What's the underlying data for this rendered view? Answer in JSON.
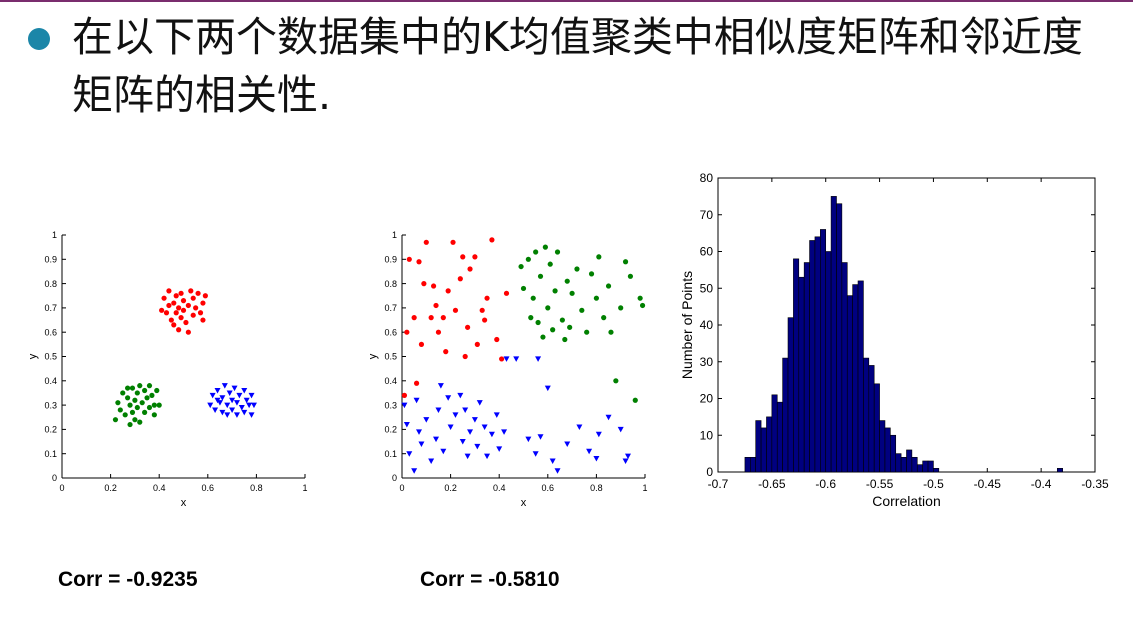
{
  "title": "在以下两个数据集中的K均值聚类中相似度矩阵和邻近度矩阵的相关性.",
  "colors": {
    "bullet": "#1b86a8",
    "red": "#ff0000",
    "green": "#008000",
    "blue": "#0000ff",
    "bar": "#000080"
  },
  "captions": {
    "left": "Corr = -0.9235",
    "middle": "Corr = -0.5810"
  },
  "chart_data": [
    {
      "type": "scatter",
      "xlabel": "x",
      "ylabel": "y",
      "xlim": [
        0,
        1
      ],
      "ylim": [
        0,
        1
      ],
      "xticks": [
        "0",
        "0.2",
        "0.4",
        "0.6",
        "0.8",
        "1"
      ],
      "yticks": [
        "0",
        "0.1",
        "0.2",
        "0.3",
        "0.4",
        "0.5",
        "0.6",
        "0.7",
        "0.8",
        "0.9",
        "1"
      ],
      "series": [
        {
          "color": "red",
          "marker": "dot",
          "points": [
            [
              0.41,
              0.69
            ],
            [
              0.42,
              0.74
            ],
            [
              0.43,
              0.68
            ],
            [
              0.44,
              0.71
            ],
            [
              0.44,
              0.77
            ],
            [
              0.45,
              0.65
            ],
            [
              0.46,
              0.72
            ],
            [
              0.46,
              0.63
            ],
            [
              0.47,
              0.75
            ],
            [
              0.47,
              0.68
            ],
            [
              0.48,
              0.7
            ],
            [
              0.48,
              0.61
            ],
            [
              0.49,
              0.76
            ],
            [
              0.49,
              0.66
            ],
            [
              0.5,
              0.73
            ],
            [
              0.5,
              0.69
            ],
            [
              0.51,
              0.64
            ],
            [
              0.52,
              0.6
            ],
            [
              0.52,
              0.71
            ],
            [
              0.53,
              0.77
            ],
            [
              0.54,
              0.67
            ],
            [
              0.54,
              0.74
            ],
            [
              0.55,
              0.7
            ],
            [
              0.56,
              0.76
            ],
            [
              0.57,
              0.68
            ],
            [
              0.58,
              0.72
            ],
            [
              0.58,
              0.65
            ],
            [
              0.59,
              0.75
            ]
          ]
        },
        {
          "color": "green",
          "marker": "dot",
          "points": [
            [
              0.22,
              0.24
            ],
            [
              0.23,
              0.31
            ],
            [
              0.24,
              0.28
            ],
            [
              0.25,
              0.35
            ],
            [
              0.26,
              0.26
            ],
            [
              0.27,
              0.33
            ],
            [
              0.28,
              0.3
            ],
            [
              0.28,
              0.22
            ],
            [
              0.29,
              0.37
            ],
            [
              0.29,
              0.27
            ],
            [
              0.3,
              0.32
            ],
            [
              0.3,
              0.24
            ],
            [
              0.31,
              0.35
            ],
            [
              0.31,
              0.29
            ],
            [
              0.32,
              0.38
            ],
            [
              0.32,
              0.23
            ],
            [
              0.33,
              0.31
            ],
            [
              0.34,
              0.27
            ],
            [
              0.34,
              0.36
            ],
            [
              0.35,
              0.33
            ],
            [
              0.36,
              0.29
            ],
            [
              0.36,
              0.38
            ],
            [
              0.37,
              0.34
            ],
            [
              0.38,
              0.3
            ],
            [
              0.38,
              0.26
            ],
            [
              0.39,
              0.36
            ],
            [
              0.4,
              0.3
            ],
            [
              0.27,
              0.37
            ]
          ]
        },
        {
          "color": "blue",
          "marker": "triangle",
          "points": [
            [
              0.61,
              0.3
            ],
            [
              0.62,
              0.34
            ],
            [
              0.63,
              0.28
            ],
            [
              0.64,
              0.36
            ],
            [
              0.65,
              0.31
            ],
            [
              0.66,
              0.27
            ],
            [
              0.66,
              0.33
            ],
            [
              0.67,
              0.38
            ],
            [
              0.68,
              0.3
            ],
            [
              0.69,
              0.35
            ],
            [
              0.7,
              0.28
            ],
            [
              0.7,
              0.32
            ],
            [
              0.71,
              0.37
            ],
            [
              0.72,
              0.26
            ],
            [
              0.72,
              0.31
            ],
            [
              0.73,
              0.34
            ],
            [
              0.74,
              0.29
            ],
            [
              0.75,
              0.36
            ],
            [
              0.75,
              0.27
            ],
            [
              0.76,
              0.32
            ],
            [
              0.77,
              0.3
            ],
            [
              0.78,
              0.34
            ],
            [
              0.78,
              0.26
            ],
            [
              0.79,
              0.3
            ],
            [
              0.64,
              0.32
            ],
            [
              0.68,
              0.26
            ]
          ]
        }
      ]
    },
    {
      "type": "scatter",
      "xlabel": "x",
      "ylabel": "y",
      "xlim": [
        0,
        1
      ],
      "ylim": [
        0,
        1
      ],
      "xticks": [
        "0",
        "0.2",
        "0.4",
        "0.6",
        "0.8",
        "1"
      ],
      "yticks": [
        "0",
        "0.1",
        "0.2",
        "0.3",
        "0.4",
        "0.5",
        "0.6",
        "0.7",
        "0.8",
        "0.9",
        "1"
      ],
      "series": [
        {
          "color": "red",
          "marker": "dot",
          "points": [
            [
              0.01,
              0.34
            ],
            [
              0.02,
              0.6
            ],
            [
              0.03,
              0.9
            ],
            [
              0.05,
              0.66
            ],
            [
              0.06,
              0.39
            ],
            [
              0.07,
              0.89
            ],
            [
              0.08,
              0.55
            ],
            [
              0.1,
              0.97
            ],
            [
              0.12,
              0.66
            ],
            [
              0.13,
              0.79
            ],
            [
              0.15,
              0.6
            ],
            [
              0.17,
              0.66
            ],
            [
              0.18,
              0.52
            ],
            [
              0.19,
              0.77
            ],
            [
              0.21,
              0.97
            ],
            [
              0.22,
              0.69
            ],
            [
              0.24,
              0.82
            ],
            [
              0.26,
              0.5
            ],
            [
              0.27,
              0.62
            ],
            [
              0.28,
              0.86
            ],
            [
              0.3,
              0.91
            ],
            [
              0.31,
              0.55
            ],
            [
              0.33,
              0.69
            ],
            [
              0.34,
              0.65
            ],
            [
              0.35,
              0.74
            ],
            [
              0.37,
              0.98
            ],
            [
              0.39,
              0.57
            ],
            [
              0.41,
              0.49
            ],
            [
              0.43,
              0.76
            ],
            [
              0.14,
              0.71
            ],
            [
              0.25,
              0.91
            ],
            [
              0.09,
              0.8
            ]
          ]
        },
        {
          "color": "green",
          "marker": "dot",
          "points": [
            [
              0.49,
              0.87
            ],
            [
              0.5,
              0.78
            ],
            [
              0.52,
              0.9
            ],
            [
              0.53,
              0.66
            ],
            [
              0.54,
              0.74
            ],
            [
              0.55,
              0.93
            ],
            [
              0.56,
              0.64
            ],
            [
              0.57,
              0.83
            ],
            [
              0.58,
              0.58
            ],
            [
              0.59,
              0.95
            ],
            [
              0.6,
              0.7
            ],
            [
              0.61,
              0.88
            ],
            [
              0.62,
              0.61
            ],
            [
              0.63,
              0.77
            ],
            [
              0.64,
              0.93
            ],
            [
              0.66,
              0.65
            ],
            [
              0.67,
              0.57
            ],
            [
              0.68,
              0.81
            ],
            [
              0.69,
              0.62
            ],
            [
              0.7,
              0.76
            ],
            [
              0.72,
              0.86
            ],
            [
              0.74,
              0.69
            ],
            [
              0.76,
              0.6
            ],
            [
              0.78,
              0.84
            ],
            [
              0.8,
              0.74
            ],
            [
              0.81,
              0.91
            ],
            [
              0.83,
              0.66
            ],
            [
              0.85,
              0.79
            ],
            [
              0.88,
              0.4
            ],
            [
              0.9,
              0.7
            ],
            [
              0.92,
              0.89
            ],
            [
              0.94,
              0.83
            ],
            [
              0.96,
              0.32
            ],
            [
              0.98,
              0.74
            ],
            [
              0.99,
              0.71
            ],
            [
              0.86,
              0.6
            ]
          ]
        },
        {
          "color": "blue",
          "marker": "triangle",
          "points": [
            [
              0.01,
              0.3
            ],
            [
              0.02,
              0.22
            ],
            [
              0.03,
              0.1
            ],
            [
              0.05,
              0.03
            ],
            [
              0.06,
              0.32
            ],
            [
              0.07,
              0.19
            ],
            [
              0.08,
              0.14
            ],
            [
              0.1,
              0.24
            ],
            [
              0.12,
              0.07
            ],
            [
              0.14,
              0.16
            ],
            [
              0.15,
              0.28
            ],
            [
              0.17,
              0.11
            ],
            [
              0.19,
              0.33
            ],
            [
              0.2,
              0.21
            ],
            [
              0.22,
              0.26
            ],
            [
              0.24,
              0.34
            ],
            [
              0.25,
              0.15
            ],
            [
              0.26,
              0.28
            ],
            [
              0.27,
              0.09
            ],
            [
              0.28,
              0.19
            ],
            [
              0.3,
              0.24
            ],
            [
              0.31,
              0.13
            ],
            [
              0.32,
              0.31
            ],
            [
              0.34,
              0.21
            ],
            [
              0.35,
              0.09
            ],
            [
              0.37,
              0.18
            ],
            [
              0.39,
              0.26
            ],
            [
              0.4,
              0.12
            ],
            [
              0.42,
              0.19
            ],
            [
              0.43,
              0.49
            ],
            [
              0.47,
              0.49
            ],
            [
              0.52,
              0.16
            ],
            [
              0.55,
              0.1
            ],
            [
              0.57,
              0.17
            ],
            [
              0.6,
              0.37
            ],
            [
              0.62,
              0.07
            ],
            [
              0.64,
              0.03
            ],
            [
              0.68,
              0.14
            ],
            [
              0.73,
              0.21
            ],
            [
              0.77,
              0.11
            ],
            [
              0.8,
              0.08
            ],
            [
              0.81,
              0.18
            ],
            [
              0.85,
              0.25
            ],
            [
              0.9,
              0.2
            ],
            [
              0.92,
              0.07
            ],
            [
              0.93,
              0.09
            ],
            [
              0.56,
              0.49
            ],
            [
              0.16,
              0.38
            ]
          ]
        }
      ]
    },
    {
      "type": "bar",
      "xlabel": "Correlation",
      "ylabel": "Number of Points",
      "xlim": [
        -0.7,
        -0.35
      ],
      "ylim": [
        0,
        80
      ],
      "xticks": [
        "-0.7",
        "-0.65",
        "-0.6",
        "-0.55",
        "-0.5",
        "-0.45",
        "-0.4",
        "-0.35"
      ],
      "yticks": [
        "0",
        "10",
        "20",
        "30",
        "40",
        "50",
        "60",
        "70",
        "80"
      ],
      "bin_width": 0.005,
      "bin_left_edges": [
        -0.675,
        -0.67,
        -0.665,
        -0.66,
        -0.655,
        -0.65,
        -0.645,
        -0.64,
        -0.635,
        -0.63,
        -0.625,
        -0.62,
        -0.615,
        -0.61,
        -0.605,
        -0.6,
        -0.595,
        -0.59,
        -0.585,
        -0.58,
        -0.575,
        -0.57,
        -0.565,
        -0.56,
        -0.555,
        -0.55,
        -0.545,
        -0.54,
        -0.535,
        -0.53,
        -0.525,
        -0.52,
        -0.515,
        -0.51,
        -0.505,
        -0.5,
        -0.495,
        -0.49,
        -0.485,
        -0.48,
        -0.385
      ],
      "values": [
        4,
        4,
        14,
        12,
        15,
        21,
        19,
        31,
        42,
        58,
        53,
        57,
        63,
        64,
        66,
        60,
        75,
        73,
        57,
        48,
        51,
        52,
        31,
        29,
        24,
        14,
        12,
        10,
        5,
        4,
        6,
        4,
        2,
        3,
        3,
        1,
        0,
        0,
        0,
        0,
        1
      ]
    }
  ]
}
